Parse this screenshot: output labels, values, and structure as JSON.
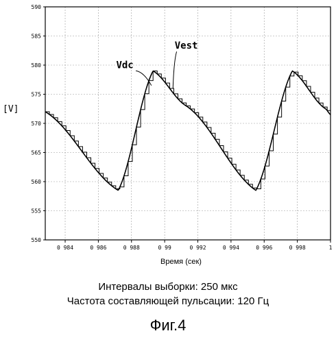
{
  "chart_data": {
    "type": "line",
    "ylabel": "[V]",
    "xlabel": "Время (сек)",
    "xlim": [
      0.9828,
      1.0
    ],
    "ylim": [
      550,
      590
    ],
    "y_ticks": [
      "550",
      "555",
      "560",
      "565",
      "570",
      "575",
      "580",
      "585",
      "590"
    ],
    "x_ticks": [
      "0 984",
      "0 986",
      "0 988",
      "0 99",
      "0 992",
      "0 994",
      "0 996",
      "0 998",
      "1"
    ],
    "x_tick_values": [
      0.984,
      0.986,
      0.988,
      0.99,
      0.992,
      0.994,
      0.996,
      0.998,
      1.0
    ],
    "y_tick_values": [
      550,
      555,
      560,
      565,
      570,
      575,
      580,
      585,
      590
    ],
    "grid": true,
    "sampling_step": 0.00025,
    "series": [
      {
        "name": "Vdc",
        "style": "smooth",
        "x": [
          0.9828,
          0.9872,
          0.9893,
          0.9913,
          0.9955,
          0.9977,
          0.9997,
          1.0
        ],
        "y": [
          572.0,
          558.5,
          579.0,
          573.0,
          558.5,
          579.0,
          572.5,
          571.5
        ]
      },
      {
        "name": "Vest",
        "style": "step",
        "x": [
          0.9828,
          0.9872,
          0.9893,
          0.9913,
          0.9955,
          0.9977,
          0.9997,
          1.0
        ],
        "y": [
          572.0,
          558.5,
          579.0,
          573.0,
          558.5,
          579.0,
          572.5,
          571.5
        ]
      }
    ],
    "annotations": [
      {
        "text": "Vdc",
        "x": 0.9876,
        "y": 579.5,
        "arrow_to": [
          0.9892,
          576.5
        ]
      },
      {
        "text": "Vest",
        "x": 0.9913,
        "y": 582.8,
        "arrow_to": [
          0.9905,
          576.0
        ]
      }
    ]
  },
  "captions": {
    "line1": "Интервалы выборки: 250 мкс",
    "line2": "Частота составляющей пульсации: 120 Гц"
  },
  "figure_label": "Фиг.4"
}
